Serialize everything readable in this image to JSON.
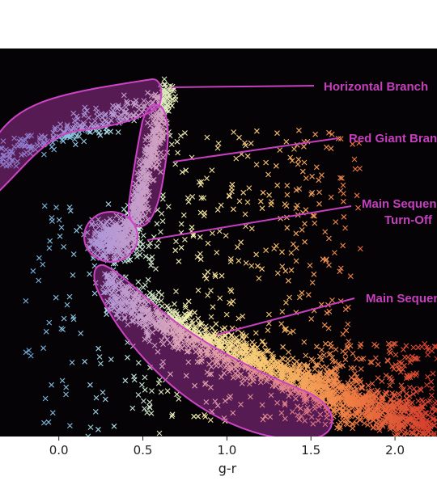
{
  "chart_data": {
    "type": "scatter",
    "title": "",
    "xlabel": "g-r",
    "ylabel": "",
    "xlim": [
      -0.35,
      2.25
    ],
    "ylim": [
      0,
      1
    ],
    "grid": false,
    "background": "#060306",
    "x_ticks": [
      0.0,
      0.5,
      1.0,
      1.5,
      2.0
    ],
    "x_tick_labels": [
      "0.0",
      "0.5",
      "1.0",
      "1.5",
      "2.0"
    ],
    "marker": "x",
    "colormap": [
      "#6aa8d8",
      "#a6dbe8",
      "#f3f0b0",
      "#f8c46e",
      "#f07f45",
      "#d6402e"
    ],
    "region_color": "#c63fbf",
    "regions": [
      {
        "name": "Horizontal Branch",
        "label": "Horizontal Branch"
      },
      {
        "name": "Red Giant Branch",
        "label": "Red Giant Branch"
      },
      {
        "name": "Main Sequence Turn-Off",
        "label_lines": [
          "Main Sequence",
          "Turn-Off"
        ]
      },
      {
        "name": "Main Sequence",
        "label": "Main Sequence"
      }
    ]
  }
}
